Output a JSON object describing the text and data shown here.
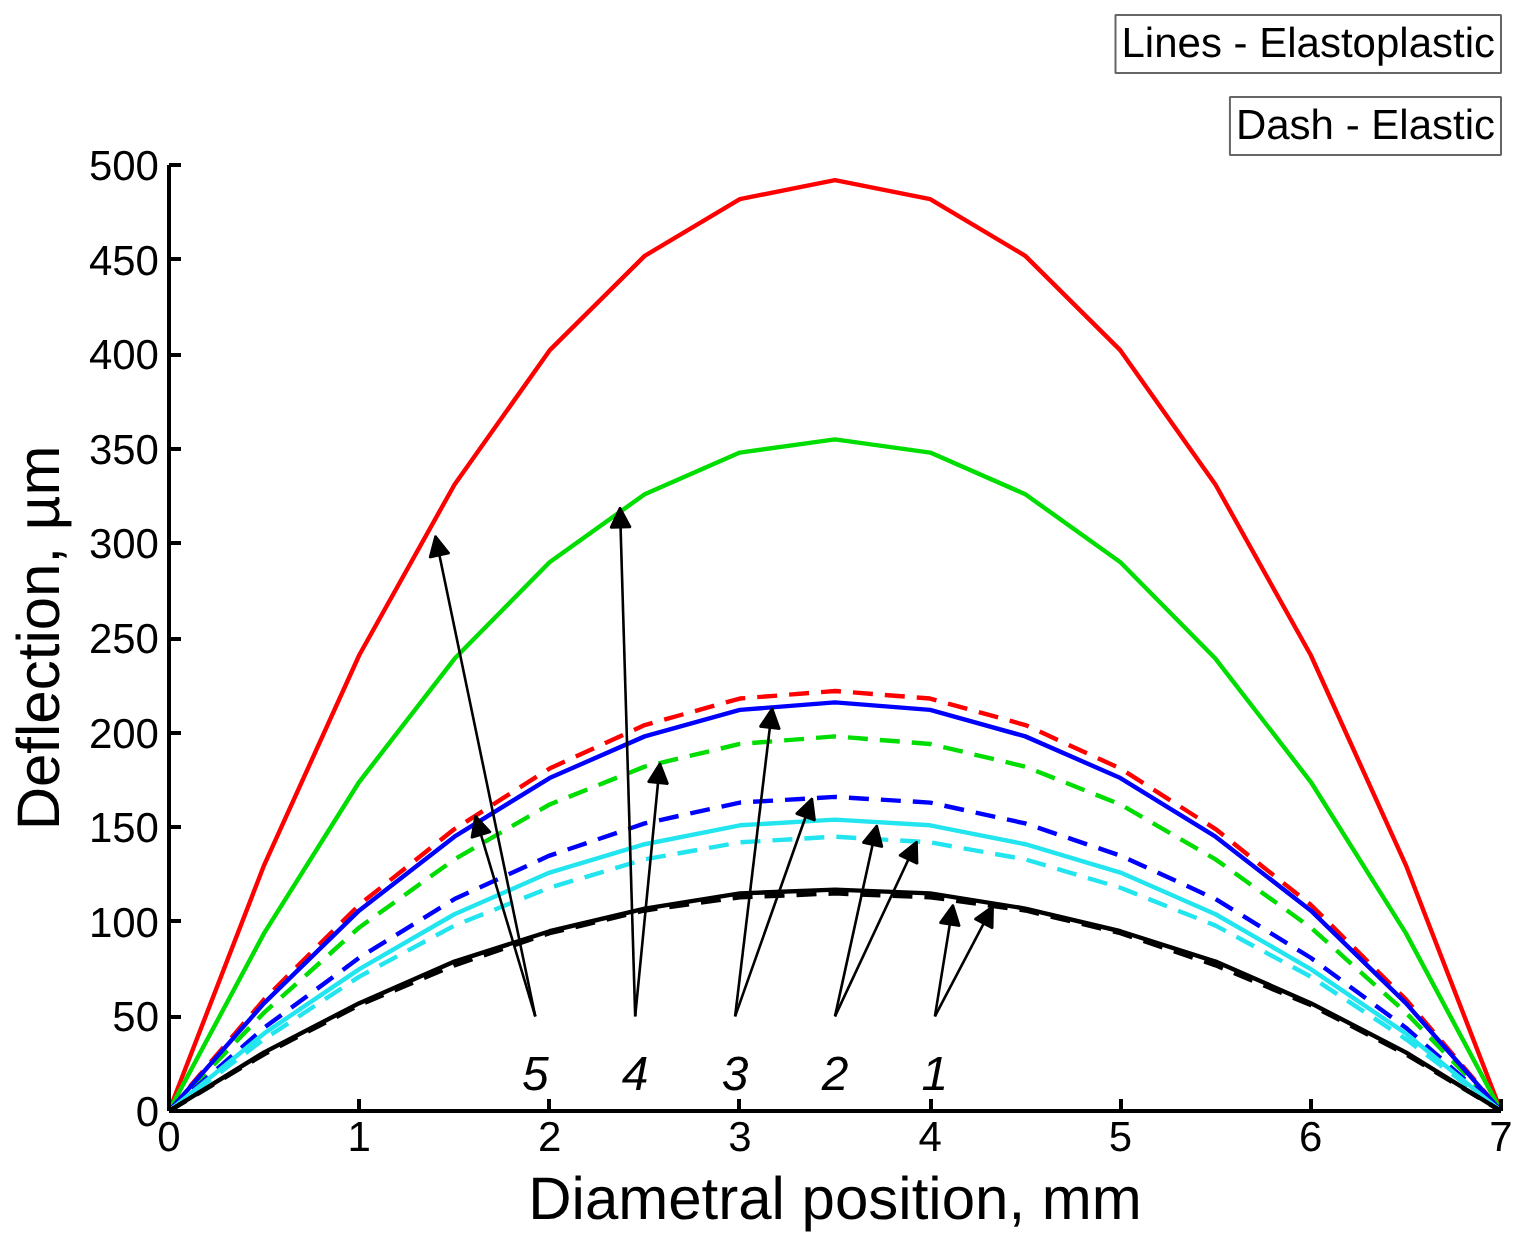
{
  "chart_data": {
    "type": "line",
    "xlabel": "Diametral position, mm",
    "ylabel": "Deflection, µm",
    "x": [
      0,
      0.5,
      1,
      1.5,
      2,
      2.5,
      3,
      3.5,
      4,
      4.5,
      5,
      5.5,
      6,
      6.5,
      7
    ],
    "series": [
      {
        "color": "#ff0000",
        "line_style": "solid",
        "values": [
          0,
          130,
          241,
          331,
          402,
          452,
          482,
          492,
          482,
          452,
          402,
          331,
          241,
          130,
          0
        ]
      },
      {
        "color": "#ff0000",
        "line_style": "dashed",
        "values": [
          0,
          59,
          109,
          149,
          181,
          204,
          218,
          222,
          218,
          204,
          181,
          149,
          109,
          59,
          0
        ]
      },
      {
        "color": "#00dd00",
        "line_style": "solid",
        "values": [
          0,
          94,
          174,
          239,
          290,
          326,
          348,
          355,
          348,
          326,
          290,
          239,
          174,
          94,
          0
        ]
      },
      {
        "color": "#00dd00",
        "line_style": "dashed",
        "values": [
          0,
          52,
          97,
          133,
          162,
          182,
          194,
          198,
          194,
          182,
          162,
          133,
          97,
          52,
          0
        ]
      },
      {
        "color": "#0000ff",
        "line_style": "solid",
        "values": [
          0,
          57,
          106,
          145,
          176,
          198,
          212,
          216,
          212,
          198,
          176,
          145,
          106,
          57,
          0
        ]
      },
      {
        "color": "#0000ff",
        "line_style": "dashed",
        "values": [
          0,
          44,
          81,
          112,
          135,
          152,
          163,
          166,
          163,
          152,
          135,
          112,
          81,
          44,
          0
        ]
      },
      {
        "color": "#22e5f0",
        "line_style": "solid",
        "values": [
          0,
          41,
          75,
          104,
          126,
          141,
          151,
          154,
          151,
          141,
          126,
          104,
          75,
          41,
          0
        ]
      },
      {
        "color": "#22e5f0",
        "line_style": "dashed",
        "values": [
          0,
          38,
          71,
          98,
          118,
          133,
          142,
          145,
          142,
          133,
          118,
          98,
          71,
          38,
          0
        ]
      },
      {
        "color": "#000000",
        "line_style": "solid",
        "values": [
          0,
          31,
          57,
          79,
          95,
          107,
          115,
          117,
          115,
          107,
          95,
          79,
          57,
          31,
          0
        ]
      },
      {
        "color": "#000000",
        "line_style": "dashed",
        "values": [
          0,
          30,
          56,
          77,
          94,
          106,
          113,
          115,
          113,
          106,
          94,
          77,
          56,
          30,
          0
        ]
      }
    ],
    "xlim": [
      0,
      7
    ],
    "xticks": [
      0,
      1,
      2,
      3,
      4,
      5,
      6,
      7
    ],
    "ylim": [
      0,
      500
    ],
    "yticks": [
      0,
      50,
      100,
      150,
      200,
      250,
      300,
      350,
      400,
      450,
      500
    ],
    "grid": false,
    "marker": "none",
    "annotations": [
      "Lines - Elastoplastic",
      "Dash - Elastic",
      {
        "text": "5",
        "x": 1.4,
        "y": 304
      },
      {
        "text": "4",
        "x": 2.37,
        "y": 319
      },
      {
        "text": "3",
        "x": 3.17,
        "y": 213
      },
      {
        "text": "2",
        "x": 3.72,
        "y": 151
      },
      {
        "text": "1",
        "x": 4.12,
        "y": 109
      }
    ]
  }
}
